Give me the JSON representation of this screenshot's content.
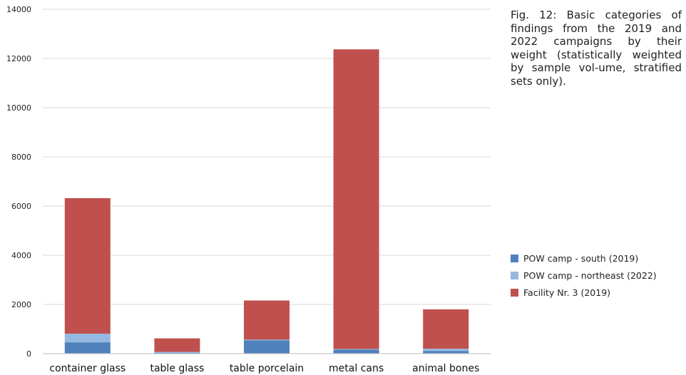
{
  "chart_data": {
    "type": "bar",
    "stacked": true,
    "categories": [
      "container glass",
      "table glass",
      "table porcelain",
      "metal cans",
      "animal bones"
    ],
    "series": [
      {
        "name": "POW camp - south (2019)",
        "color": "#4f81bd",
        "values": [
          460,
          30,
          540,
          160,
          110
        ]
      },
      {
        "name": "POW camp - northeast (2022)",
        "color": "#95b9e0",
        "values": [
          350,
          40,
          30,
          30,
          90
        ]
      },
      {
        "name": "Facility Nr. 3 (2019)",
        "color": "#c0504d",
        "values": [
          5510,
          550,
          1590,
          12180,
          1600
        ]
      }
    ],
    "ylim": [
      0,
      14000
    ],
    "yticks": [
      0,
      2000,
      4000,
      6000,
      8000,
      10000,
      12000,
      14000
    ],
    "grid": true,
    "legend_position": "right",
    "xlabel": "",
    "ylabel": ""
  },
  "caption": "Fig. 12: Basic categories of findings from the 2019 and 2022 campaigns by their weight (statistically weighted by sample vol-ume, stratified sets only)."
}
